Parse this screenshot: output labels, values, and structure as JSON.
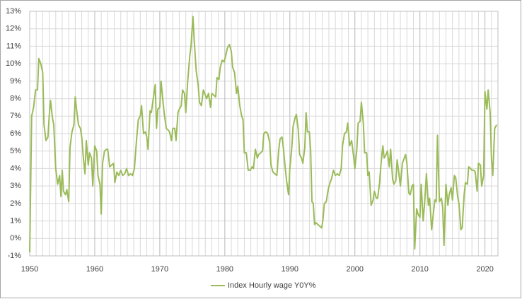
{
  "chart_data": {
    "type": "line",
    "x": [
      1950.0,
      1950.3,
      1950.6,
      1950.9,
      1951.2,
      1951.4,
      1951.7,
      1952.0,
      1952.2,
      1952.5,
      1952.8,
      1953.0,
      1953.2,
      1953.5,
      1953.7,
      1954.0,
      1954.3,
      1954.6,
      1954.8,
      1955.0,
      1955.2,
      1955.5,
      1955.7,
      1956.0,
      1956.2,
      1956.5,
      1956.8,
      1957.0,
      1957.2,
      1957.5,
      1957.8,
      1958.0,
      1958.3,
      1958.5,
      1958.7,
      1959.0,
      1959.2,
      1959.5,
      1959.7,
      1960.0,
      1960.3,
      1960.5,
      1960.8,
      1961.0,
      1961.2,
      1961.5,
      1961.8,
      1962.0,
      1962.3,
      1962.6,
      1962.9,
      1963.1,
      1963.4,
      1963.7,
      1964.0,
      1964.3,
      1964.6,
      1964.9,
      1965.2,
      1965.5,
      1965.8,
      1966.1,
      1966.4,
      1966.7,
      1967.0,
      1967.2,
      1967.5,
      1967.8,
      1968.0,
      1968.2,
      1968.5,
      1968.7,
      1969.0,
      1969.3,
      1969.5,
      1969.7,
      1970.0,
      1970.2,
      1970.5,
      1970.7,
      1971.0,
      1971.3,
      1971.5,
      1971.8,
      1972.0,
      1972.3,
      1972.5,
      1972.8,
      1973.0,
      1973.3,
      1973.5,
      1973.8,
      1974.0,
      1974.3,
      1974.6,
      1974.8,
      1975.1,
      1975.3,
      1975.6,
      1975.9,
      1976.1,
      1976.4,
      1976.7,
      1977.0,
      1977.2,
      1977.5,
      1977.8,
      1978.0,
      1978.3,
      1978.6,
      1978.8,
      1979.1,
      1979.3,
      1979.6,
      1979.9,
      1980.1,
      1980.4,
      1980.7,
      1981.0,
      1981.2,
      1981.5,
      1981.8,
      1982.0,
      1982.3,
      1982.6,
      1982.8,
      1983.0,
      1983.3,
      1983.6,
      1983.9,
      1984.2,
      1984.4,
      1984.7,
      1985.0,
      1985.2,
      1985.5,
      1985.8,
      1986.0,
      1986.3,
      1986.6,
      1986.9,
      1987.1,
      1987.4,
      1987.7,
      1988.0,
      1988.3,
      1988.5,
      1988.8,
      1989.0,
      1989.3,
      1989.5,
      1989.8,
      1990.0,
      1990.3,
      1990.5,
      1990.8,
      1991.0,
      1991.3,
      1991.5,
      1991.8,
      1992.0,
      1992.3,
      1992.5,
      1992.7,
      1993.0,
      1993.2,
      1993.4,
      1993.6,
      1993.8,
      1994.0,
      1994.3,
      1994.6,
      1994.9,
      1995.1,
      1995.3,
      1995.6,
      1995.9,
      1996.1,
      1996.4,
      1996.7,
      1997.0,
      1997.3,
      1997.6,
      1997.9,
      1998.1,
      1998.4,
      1998.7,
      1998.9,
      1999.2,
      1999.5,
      1999.8,
      2000.0,
      2000.3,
      2000.5,
      2000.8,
      2001.0,
      2001.3,
      2001.5,
      2001.8,
      2002.0,
      2002.2,
      2002.5,
      2002.8,
      2003.0,
      2003.3,
      2003.5,
      2003.8,
      2004.0,
      2004.3,
      2004.5,
      2004.8,
      2005.0,
      2005.3,
      2005.5,
      2005.8,
      2006.0,
      2006.3,
      2006.5,
      2006.8,
      2007.0,
      2007.3,
      2007.5,
      2007.8,
      2008.0,
      2008.3,
      2008.5,
      2008.8,
      2009.0,
      2009.2,
      2009.5,
      2009.7,
      2010.0,
      2010.2,
      2010.5,
      2010.7,
      2011.0,
      2011.3,
      2011.5,
      2011.8,
      2012.0,
      2012.3,
      2012.5,
      2012.7,
      2013.0,
      2013.3,
      2013.5,
      2013.7,
      2014.0,
      2014.3,
      2014.5,
      2014.8,
      2015.0,
      2015.3,
      2015.5,
      2015.8,
      2016.0,
      2016.3,
      2016.5,
      2016.8,
      2017.0,
      2017.3,
      2017.5,
      2017.8,
      2018.0,
      2018.3,
      2018.5,
      2018.8,
      2019.0,
      2019.3,
      2019.5,
      2019.8,
      2020.0,
      2020.3,
      2020.5,
      2020.8,
      2021.0,
      2021.2,
      2021.5,
      2021.8
    ],
    "series": [
      {
        "name": "Index Hourly wage  Y0Y%",
        "color": "#9bbb59",
        "values": [
          -0.8,
          7.0,
          7.5,
          8.5,
          8.5,
          10.3,
          10.0,
          9.5,
          6.5,
          5.6,
          5.8,
          7.0,
          7.9,
          6.9,
          6.5,
          4.0,
          3.1,
          3.6,
          2.4,
          3.9,
          2.7,
          2.5,
          2.8,
          2.1,
          5.2,
          6.1,
          6.5,
          8.1,
          7.4,
          6.5,
          6.3,
          5.8,
          4.4,
          3.7,
          5.6,
          4.2,
          4.9,
          4.6,
          3.0,
          5.3,
          5.0,
          3.6,
          3.1,
          1.4,
          4.3,
          5.0,
          5.1,
          5.1,
          4.1,
          4.2,
          4.3,
          3.2,
          3.8,
          3.6,
          3.9,
          3.6,
          3.7,
          4.0,
          3.6,
          3.7,
          3.6,
          4.0,
          5.5,
          6.8,
          7.0,
          7.6,
          6.0,
          6.1,
          5.8,
          5.1,
          7.3,
          7.2,
          8.0,
          8.8,
          6.3,
          7.4,
          7.5,
          9.0,
          7.8,
          7.1,
          6.3,
          6.2,
          6.1,
          5.6,
          6.3,
          6.3,
          5.6,
          7.2,
          7.4,
          7.6,
          8.5,
          8.3,
          7.2,
          9.0,
          10.4,
          11.0,
          12.7,
          11.3,
          9.6,
          8.8,
          7.8,
          7.6,
          8.5,
          8.2,
          8.0,
          8.3,
          7.5,
          8.3,
          8.2,
          8.1,
          9.2,
          9.1,
          9.8,
          10.2,
          10.1,
          10.4,
          10.9,
          11.1,
          10.7,
          9.8,
          9.5,
          8.3,
          8.7,
          7.6,
          7.0,
          6.8,
          4.9,
          4.9,
          3.9,
          3.9,
          4.1,
          4.0,
          5.1,
          4.6,
          4.8,
          4.9,
          5.0,
          6.0,
          6.1,
          6.0,
          5.5,
          4.2,
          3.8,
          3.7,
          3.6,
          5.1,
          5.7,
          5.8,
          5.2,
          4.0,
          3.3,
          2.5,
          4.0,
          5.2,
          6.4,
          6.9,
          7.1,
          6.2,
          4.8,
          4.6,
          4.3,
          5.2,
          7.2,
          6.1,
          6.1,
          5.0,
          2.1,
          2.0,
          0.8,
          0.9,
          0.8,
          0.7,
          0.6,
          1.1,
          2.0,
          2.1,
          2.8,
          3.1,
          3.4,
          3.9,
          3.6,
          3.7,
          3.6,
          4.0,
          5.3,
          6.0,
          6.1,
          6.6,
          5.3,
          5.6,
          4.7,
          4.0,
          5.1,
          6.6,
          6.7,
          7.8,
          6.6,
          4.9,
          4.9,
          3.6,
          3.8,
          1.9,
          2.2,
          2.7,
          2.3,
          2.3,
          3.2,
          4.2,
          5.3,
          4.6,
          4.8,
          5.0,
          4.1,
          5.1,
          3.4,
          3.1,
          3.3,
          4.5,
          3.6,
          3.0,
          4.3,
          4.5,
          4.8,
          4.3,
          2.6,
          2.5,
          3.0,
          3.1,
          -0.6,
          1.7,
          1.4,
          1.2,
          3.1,
          1.0,
          1.9,
          3.7,
          1.9,
          2.3,
          0.5,
          1.2,
          2.2,
          2.1,
          5.9,
          2.1,
          2.3,
          1.8,
          -0.4,
          3.1,
          1.9,
          2.5,
          2.9,
          2.2,
          3.6,
          3.5,
          2.4,
          2.0,
          0.5,
          0.6,
          2.5,
          3.2,
          3.1,
          4.1,
          4.0,
          3.9,
          3.9,
          3.8,
          2.7,
          4.3,
          4.2,
          3.0,
          3.6,
          8.4,
          7.4,
          8.5,
          7.2,
          4.6,
          3.6,
          6.3,
          6.5
        ]
      }
    ],
    "xlim": [
      1950,
      2022
    ],
    "xticks": [
      1950,
      1960,
      1970,
      1980,
      1990,
      2000,
      2010,
      2020
    ],
    "ylim": [
      -1,
      13
    ],
    "yticks": [
      {
        "value": -1,
        "label": "-1%"
      },
      {
        "value": 0,
        "label": "0%"
      },
      {
        "value": 1,
        "label": "1%"
      },
      {
        "value": 2,
        "label": "2%"
      },
      {
        "value": 3,
        "label": "3%"
      },
      {
        "value": 4,
        "label": "4%"
      },
      {
        "value": 5,
        "label": "5%"
      },
      {
        "value": 6,
        "label": "6%"
      },
      {
        "value": 7,
        "label": "7%"
      },
      {
        "value": 8,
        "label": "8%"
      },
      {
        "value": 9,
        "label": "9%"
      },
      {
        "value": 10,
        "label": "10%"
      },
      {
        "value": 11,
        "label": "11%"
      },
      {
        "value": 12,
        "label": "12%"
      },
      {
        "value": 13,
        "label": "13%"
      }
    ],
    "grid": true,
    "legend": "bottom"
  }
}
